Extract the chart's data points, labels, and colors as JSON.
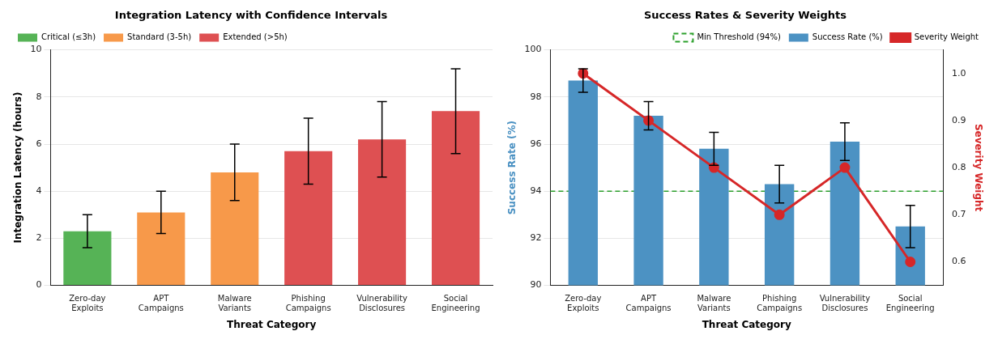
{
  "chart_data": [
    {
      "type": "bar",
      "title": "Integration Latency with Confidence Intervals",
      "xlabel": "Threat Category",
      "ylabel": "Integration Latency (hours)",
      "categories": [
        "Zero-day Exploits",
        "APT Campaigns",
        "Malware Variants",
        "Phishing Campaigns",
        "Vulnerability Disclosures",
        "Social Engineering"
      ],
      "stacked": true,
      "series": [
        {
          "name": "Critical (≤3h)",
          "color": "#56b356",
          "values": [
            2.3,
            null,
            null,
            null,
            null,
            null
          ],
          "errors": [
            [
              1.6,
              3.0
            ],
            null,
            null,
            null,
            null,
            null
          ]
        },
        {
          "name": "Standard (3-5h)",
          "color": "#f7994a",
          "values": [
            null,
            3.1,
            4.8,
            null,
            null,
            null
          ],
          "errors": [
            null,
            [
              2.2,
              4.0
            ],
            [
              3.6,
              6.0
            ],
            null,
            null,
            null
          ]
        },
        {
          "name": "Extended (>5h)",
          "color": "#de5052",
          "values": [
            null,
            null,
            null,
            5.7,
            6.2,
            7.4
          ],
          "errors": [
            null,
            null,
            null,
            [
              4.3,
              7.1
            ],
            [
              4.6,
              7.8
            ],
            [
              5.6,
              9.2
            ]
          ]
        }
      ],
      "ylim": [
        0,
        10
      ],
      "yticks": [
        0,
        2,
        4,
        6,
        8,
        10
      ],
      "grid": "y",
      "legend": "top left"
    },
    {
      "type": "bar",
      "title": "Success Rates & Severity Weights",
      "xlabel": "Threat Category",
      "ylabel": "Success Rate (%)",
      "y2label": "Severity Weight",
      "categories": [
        "Zero-day Exploits",
        "APT Campaigns",
        "Malware Variants",
        "Phishing Campaigns",
        "Vulnerability Disclosures",
        "Social Engineering"
      ],
      "series": [
        {
          "name": "Success Rate (%)",
          "color": "#4c92c3",
          "values": [
            98.7,
            97.2,
            95.8,
            94.3,
            96.1,
            92.5
          ],
          "errors": [
            [
              98.2,
              99.2
            ],
            [
              96.6,
              97.8
            ],
            [
              95.1,
              96.5
            ],
            [
              93.5,
              95.1
            ],
            [
              95.3,
              96.9
            ],
            [
              91.6,
              93.4
            ]
          ]
        },
        {
          "name": "Severity Weight",
          "type": "line",
          "axis": "y2",
          "color": "#d62728",
          "marker": "circle",
          "values": [
            1.0,
            0.9,
            0.8,
            0.7,
            0.8,
            0.6
          ]
        }
      ],
      "ylim": [
        90,
        100
      ],
      "yticks": [
        90,
        92,
        94,
        96,
        98,
        100
      ],
      "y2lim": [
        0.55,
        1.05
      ],
      "y2ticks": [
        0.6,
        0.7,
        0.8,
        0.9,
        {
          "value": 1.0,
          "label": "1.0"
        }
      ],
      "ref_lines": [
        {
          "axis": "y",
          "value": 94,
          "label": "Min Threshold (94%)",
          "color": "#2ca02c",
          "line_style": "dashed"
        }
      ],
      "grid": "y",
      "legend": "top right"
    }
  ]
}
